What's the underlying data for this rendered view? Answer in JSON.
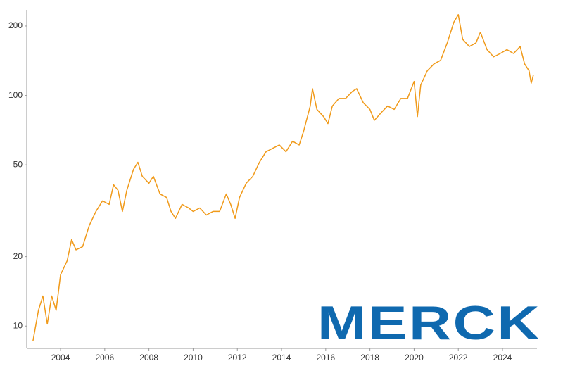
{
  "chart_data": {
    "type": "line",
    "logo": "MERCK",
    "x": [
      2002.75,
      2003.0,
      2003.2,
      2003.4,
      2003.6,
      2003.8,
      2004.0,
      2004.3,
      2004.5,
      2004.7,
      2005.0,
      2005.3,
      2005.6,
      2005.9,
      2006.2,
      2006.4,
      2006.6,
      2006.8,
      2007.0,
      2007.3,
      2007.5,
      2007.7,
      2008.0,
      2008.2,
      2008.5,
      2008.8,
      2009.0,
      2009.2,
      2009.5,
      2009.8,
      2010.0,
      2010.3,
      2010.6,
      2010.9,
      2011.2,
      2011.5,
      2011.7,
      2011.9,
      2012.1,
      2012.4,
      2012.7,
      2013.0,
      2013.3,
      2013.6,
      2013.9,
      2014.2,
      2014.5,
      2014.8,
      2015.0,
      2015.3,
      2015.4,
      2015.6,
      2015.9,
      2016.1,
      2016.3,
      2016.6,
      2016.9,
      2017.2,
      2017.4,
      2017.7,
      2018.0,
      2018.2,
      2018.5,
      2018.8,
      2019.1,
      2019.4,
      2019.7,
      2020.0,
      2020.15,
      2020.3,
      2020.6,
      2020.9,
      2021.2,
      2021.5,
      2021.8,
      2022.0,
      2022.2,
      2022.5,
      2022.8,
      2023.0,
      2023.3,
      2023.6,
      2023.9,
      2024.2,
      2024.5,
      2024.8,
      2025.0,
      2025.2,
      2025.3,
      2025.4
    ],
    "series": [
      {
        "color": "#f09a1a",
        "values": [
          8.6,
          11.7,
          13.5,
          10.2,
          13.5,
          11.7,
          16.7,
          19.2,
          23.7,
          21.4,
          22.1,
          27.3,
          31.4,
          34.9,
          33.7,
          41,
          38.8,
          31.4,
          38.8,
          47.8,
          51.3,
          44.6,
          41.6,
          44.6,
          37.4,
          36.1,
          31.4,
          29.3,
          33.7,
          32.5,
          31.4,
          32.5,
          30.3,
          31.4,
          31.4,
          37.4,
          33.7,
          29.3,
          36.1,
          41.6,
          44.6,
          51.3,
          57,
          59,
          61,
          57,
          63.3,
          61,
          70,
          90,
          107,
          87,
          81,
          75.5,
          90,
          97,
          97,
          104,
          107,
          93,
          87,
          78,
          84,
          90,
          87,
          97,
          97,
          115,
          81,
          111,
          128,
          137,
          142,
          169,
          208,
          224,
          175,
          163,
          169,
          188,
          158,
          147,
          152,
          158,
          152,
          163,
          137,
          128,
          113,
          123
        ]
      }
    ],
    "xlim": [
      2002.47,
      2025.56
    ],
    "xticks": [
      2004,
      2006,
      2008,
      2010,
      2012,
      2014,
      2016,
      2018,
      2020,
      2022,
      2024
    ],
    "ylim": [
      8,
      235
    ],
    "yticks": [
      10,
      20,
      50,
      100,
      200
    ],
    "log_y": true,
    "grid": false
  }
}
